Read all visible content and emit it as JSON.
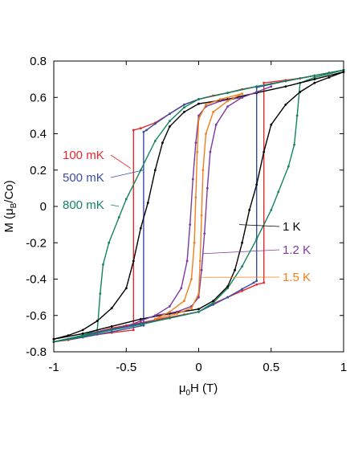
{
  "chart_data": {
    "type": "line",
    "title": "",
    "xlabel": {
      "prefix": "μ",
      "sub": "0",
      "suffix": "H (T)"
    },
    "ylabel": {
      "prefix": "M (μ",
      "sub": "B",
      "suffix": "/Co)"
    },
    "xlim": [
      -1,
      1
    ],
    "ylim": [
      -0.8,
      0.8
    ],
    "x_ticks": [
      "-1",
      "-0.5",
      "0",
      "0.5",
      "1"
    ],
    "y_ticks": [
      "0.8",
      "0.6",
      "0.4",
      "0.2",
      "0",
      "-0.2",
      "-0.4",
      "-0.6",
      "-0.8"
    ],
    "grid": false,
    "series": [
      {
        "name": "100 mK",
        "color": "#e8282e",
        "up": [
          [
            -1,
            -0.745
          ],
          [
            -0.9,
            -0.73
          ],
          [
            -0.8,
            -0.71
          ],
          [
            -0.7,
            -0.69
          ],
          [
            -0.6,
            -0.67
          ],
          [
            -0.5,
            -0.655
          ],
          [
            -0.4,
            -0.64
          ],
          [
            -0.3,
            -0.625
          ],
          [
            -0.2,
            -0.61
          ],
          [
            -0.1,
            -0.595
          ],
          [
            0,
            -0.58
          ],
          [
            0.1,
            -0.535
          ],
          [
            0.2,
            -0.5
          ],
          [
            0.3,
            -0.465
          ],
          [
            0.4,
            -0.43
          ],
          [
            0.45,
            -0.42
          ],
          [
            0.45,
            0.68
          ],
          [
            0.6,
            0.695
          ],
          [
            0.7,
            0.705
          ],
          [
            0.8,
            0.72
          ],
          [
            0.9,
            0.735
          ],
          [
            1,
            0.75
          ]
        ],
        "down": [
          [
            1,
            0.75
          ],
          [
            0.9,
            0.735
          ],
          [
            0.8,
            0.72
          ],
          [
            0.7,
            0.705
          ],
          [
            0.6,
            0.69
          ],
          [
            0.5,
            0.675
          ],
          [
            0.4,
            0.66
          ],
          [
            0.3,
            0.645
          ],
          [
            0.2,
            0.625
          ],
          [
            0.1,
            0.61
          ],
          [
            0,
            0.59
          ],
          [
            -0.1,
            0.56
          ],
          [
            -0.2,
            0.51
          ],
          [
            -0.3,
            0.46
          ],
          [
            -0.4,
            0.43
          ],
          [
            -0.45,
            0.42
          ],
          [
            -0.45,
            -0.68
          ],
          [
            -0.6,
            -0.695
          ],
          [
            -0.7,
            -0.705
          ],
          [
            -0.8,
            -0.72
          ],
          [
            -0.9,
            -0.735
          ],
          [
            -1,
            -0.745
          ]
        ]
      },
      {
        "name": "500 mK",
        "color": "#3a4ea3",
        "up": [
          [
            -1,
            -0.745
          ],
          [
            -0.8,
            -0.71
          ],
          [
            -0.6,
            -0.675
          ],
          [
            -0.4,
            -0.645
          ],
          [
            -0.2,
            -0.615
          ],
          [
            0,
            -0.58
          ],
          [
            0.1,
            -0.54
          ],
          [
            0.2,
            -0.5
          ],
          [
            0.3,
            -0.455
          ],
          [
            0.38,
            -0.42
          ],
          [
            0.4,
            -0.41
          ],
          [
            0.4,
            0.655
          ],
          [
            0.6,
            0.69
          ],
          [
            0.8,
            0.72
          ],
          [
            1,
            0.75
          ]
        ],
        "down": [
          [
            1,
            0.75
          ],
          [
            0.8,
            0.72
          ],
          [
            0.6,
            0.69
          ],
          [
            0.4,
            0.66
          ],
          [
            0.2,
            0.625
          ],
          [
            0,
            0.59
          ],
          [
            -0.1,
            0.56
          ],
          [
            -0.2,
            0.51
          ],
          [
            -0.3,
            0.455
          ],
          [
            -0.36,
            0.42
          ],
          [
            -0.38,
            0.41
          ],
          [
            -0.38,
            -0.655
          ],
          [
            -0.6,
            -0.69
          ],
          [
            -0.8,
            -0.72
          ],
          [
            -1,
            -0.745
          ]
        ]
      },
      {
        "name": "800 mK",
        "color": "#13855a",
        "up": [
          [
            -1,
            -0.745
          ],
          [
            -0.8,
            -0.715
          ],
          [
            -0.6,
            -0.68
          ],
          [
            -0.4,
            -0.65
          ],
          [
            -0.2,
            -0.615
          ],
          [
            0,
            -0.58
          ],
          [
            0.1,
            -0.53
          ],
          [
            0.2,
            -0.45
          ],
          [
            0.3,
            -0.33
          ],
          [
            0.4,
            -0.18
          ],
          [
            0.5,
            -0.02
          ],
          [
            0.55,
            0.08
          ],
          [
            0.62,
            0.22
          ],
          [
            0.66,
            0.34
          ],
          [
            0.68,
            0.5
          ],
          [
            0.7,
            0.68
          ],
          [
            0.8,
            0.71
          ],
          [
            1,
            0.75
          ]
        ],
        "down": [
          [
            1,
            0.75
          ],
          [
            0.8,
            0.72
          ],
          [
            0.6,
            0.69
          ],
          [
            0.4,
            0.66
          ],
          [
            0.2,
            0.625
          ],
          [
            0,
            0.59
          ],
          [
            -0.1,
            0.545
          ],
          [
            -0.2,
            0.47
          ],
          [
            -0.3,
            0.36
          ],
          [
            -0.4,
            0.2
          ],
          [
            -0.5,
            0.04
          ],
          [
            -0.55,
            -0.06
          ],
          [
            -0.62,
            -0.2
          ],
          [
            -0.66,
            -0.32
          ],
          [
            -0.68,
            -0.48
          ],
          [
            -0.7,
            -0.68
          ],
          [
            -0.8,
            -0.71
          ],
          [
            -1,
            -0.745
          ]
        ]
      },
      {
        "name": "1 K",
        "color": "#000000",
        "up": [
          [
            -1,
            -0.73
          ],
          [
            -0.8,
            -0.7
          ],
          [
            -0.6,
            -0.66
          ],
          [
            -0.4,
            -0.62
          ],
          [
            -0.2,
            -0.59
          ],
          [
            0,
            -0.565
          ],
          [
            0.1,
            -0.52
          ],
          [
            0.2,
            -0.44
          ],
          [
            0.25,
            -0.35
          ],
          [
            0.3,
            -0.2
          ],
          [
            0.35,
            -0.02
          ],
          [
            0.4,
            0.12
          ],
          [
            0.45,
            0.3
          ],
          [
            0.5,
            0.45
          ],
          [
            0.6,
            0.56
          ],
          [
            0.7,
            0.63
          ],
          [
            0.8,
            0.68
          ],
          [
            0.9,
            0.71
          ],
          [
            1,
            0.74
          ]
        ],
        "down": [
          [
            1,
            0.74
          ],
          [
            0.8,
            0.7
          ],
          [
            0.6,
            0.66
          ],
          [
            0.4,
            0.625
          ],
          [
            0.2,
            0.59
          ],
          [
            0,
            0.565
          ],
          [
            -0.1,
            0.52
          ],
          [
            -0.2,
            0.44
          ],
          [
            -0.25,
            0.35
          ],
          [
            -0.3,
            0.2
          ],
          [
            -0.35,
            0.02
          ],
          [
            -0.4,
            -0.12
          ],
          [
            -0.45,
            -0.3
          ],
          [
            -0.5,
            -0.45
          ],
          [
            -0.6,
            -0.56
          ],
          [
            -0.7,
            -0.63
          ],
          [
            -0.8,
            -0.68
          ],
          [
            -0.9,
            -0.71
          ],
          [
            -1,
            -0.73
          ]
        ]
      },
      {
        "name": "1.2 K",
        "color": "#7b3aa0",
        "up": [
          [
            -0.3,
            -0.6
          ],
          [
            -0.15,
            -0.58
          ],
          [
            -0.05,
            -0.55
          ],
          [
            0,
            -0.5
          ],
          [
            0.02,
            -0.35
          ],
          [
            0.04,
            -0.15
          ],
          [
            0.06,
            0.1
          ],
          [
            0.08,
            0.3
          ],
          [
            0.12,
            0.45
          ],
          [
            0.2,
            0.55
          ],
          [
            0.3,
            0.6
          ],
          [
            0.4,
            0.63
          ],
          [
            0.5,
            0.66
          ]
        ],
        "down": [
          [
            0.3,
            0.6
          ],
          [
            0.15,
            0.58
          ],
          [
            0.05,
            0.55
          ],
          [
            0,
            0.5
          ],
          [
            -0.02,
            0.35
          ],
          [
            -0.04,
            0.15
          ],
          [
            -0.06,
            -0.1
          ],
          [
            -0.08,
            -0.3
          ],
          [
            -0.12,
            -0.45
          ],
          [
            -0.2,
            -0.55
          ],
          [
            -0.3,
            -0.6
          ],
          [
            -0.4,
            -0.63
          ],
          [
            -0.5,
            -0.66
          ]
        ]
      },
      {
        "name": "1.5 K",
        "color": "#f07f1e",
        "up": [
          [
            -0.3,
            -0.62
          ],
          [
            -0.15,
            -0.59
          ],
          [
            -0.05,
            -0.56
          ],
          [
            0,
            -0.48
          ],
          [
            0.01,
            -0.3
          ],
          [
            0.02,
            -0.05
          ],
          [
            0.03,
            0.2
          ],
          [
            0.05,
            0.4
          ],
          [
            0.1,
            0.52
          ],
          [
            0.2,
            0.58
          ],
          [
            0.3,
            0.62
          ]
        ],
        "down": [
          [
            0.3,
            0.62
          ],
          [
            0.15,
            0.59
          ],
          [
            0.05,
            0.56
          ],
          [
            0,
            0.48
          ],
          [
            -0.01,
            0.3
          ],
          [
            -0.02,
            0.05
          ],
          [
            -0.03,
            -0.2
          ],
          [
            -0.05,
            -0.4
          ],
          [
            -0.1,
            -0.52
          ],
          [
            -0.2,
            -0.58
          ],
          [
            -0.3,
            -0.62
          ]
        ]
      }
    ],
    "labels": [
      {
        "text": "100 mK",
        "color": "#e8282e",
        "pointer": [
          -0.47,
          0.21
        ]
      },
      {
        "text": "500 mK",
        "color": "#3a4ea3",
        "pointer": [
          -0.38,
          0.2
        ]
      },
      {
        "text": "800 mK",
        "color": "#13855a",
        "pointer": [
          -0.55,
          0.0
        ]
      },
      {
        "text": "1 K",
        "color": "#000000",
        "pointer": [
          0.28,
          -0.1
        ]
      },
      {
        "text": "1.2 K",
        "color": "#7b3aa0",
        "pointer": [
          0.03,
          -0.26
        ]
      },
      {
        "text": "1.5 K",
        "color": "#f07f1e",
        "pointer": [
          0.02,
          -0.39
        ]
      }
    ]
  }
}
